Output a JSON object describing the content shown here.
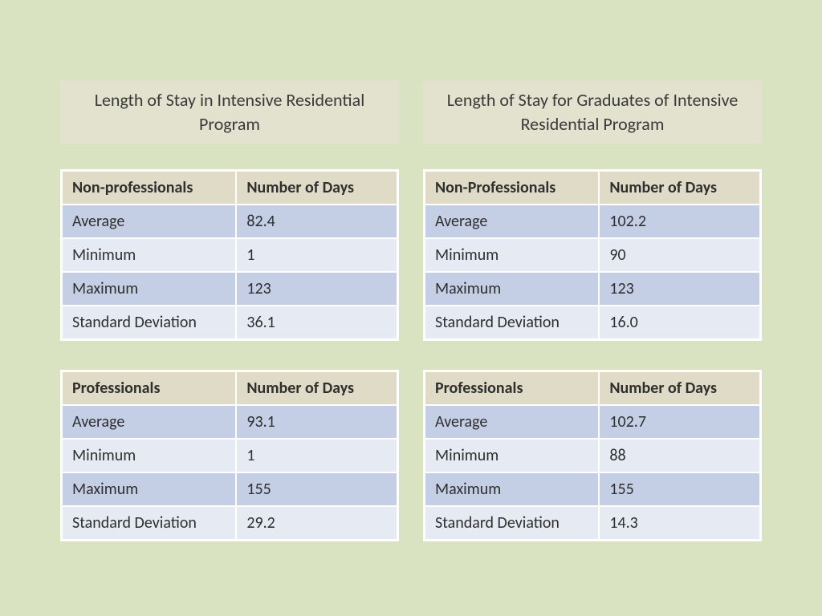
{
  "background_color": "#d9e2c1",
  "title_bg": "#e2e2cf",
  "header_bg": "#dfdbc6",
  "row_odd_bg": "#c4cfe5",
  "row_even_bg": "#e5eaf3",
  "border_color": "#ffffff",
  "text_color": "#2f2f2f",
  "title_fontsize": 22,
  "cell_fontsize": 20,
  "left": {
    "title": "Length of Stay in Intensive Residential Program",
    "tables": [
      {
        "columns": [
          "Non-professionals",
          "Number of Days"
        ],
        "rows": [
          [
            "Average",
            "82.4"
          ],
          [
            "Minimum",
            "1"
          ],
          [
            "Maximum",
            "123"
          ],
          [
            "Standard Deviation",
            "36.1"
          ]
        ]
      },
      {
        "columns": [
          "Professionals",
          "Number of Days"
        ],
        "rows": [
          [
            "Average",
            "93.1"
          ],
          [
            "Minimum",
            "1"
          ],
          [
            "Maximum",
            "155"
          ],
          [
            "Standard Deviation",
            "29.2"
          ]
        ]
      }
    ]
  },
  "right": {
    "title": "Length of Stay for Graduates of Intensive Residential Program",
    "tables": [
      {
        "columns": [
          "Non-Professionals",
          "Number of Days"
        ],
        "rows": [
          [
            "Average",
            "102.2"
          ],
          [
            "Minimum",
            "90"
          ],
          [
            "Maximum",
            "123"
          ],
          [
            "Standard Deviation",
            "16.0"
          ]
        ]
      },
      {
        "columns": [
          "Professionals",
          "Number of Days"
        ],
        "rows": [
          [
            "Average",
            "102.7"
          ],
          [
            "Minimum",
            "88"
          ],
          [
            "Maximum",
            "155"
          ],
          [
            "Standard Deviation",
            "14.3"
          ]
        ]
      }
    ]
  }
}
